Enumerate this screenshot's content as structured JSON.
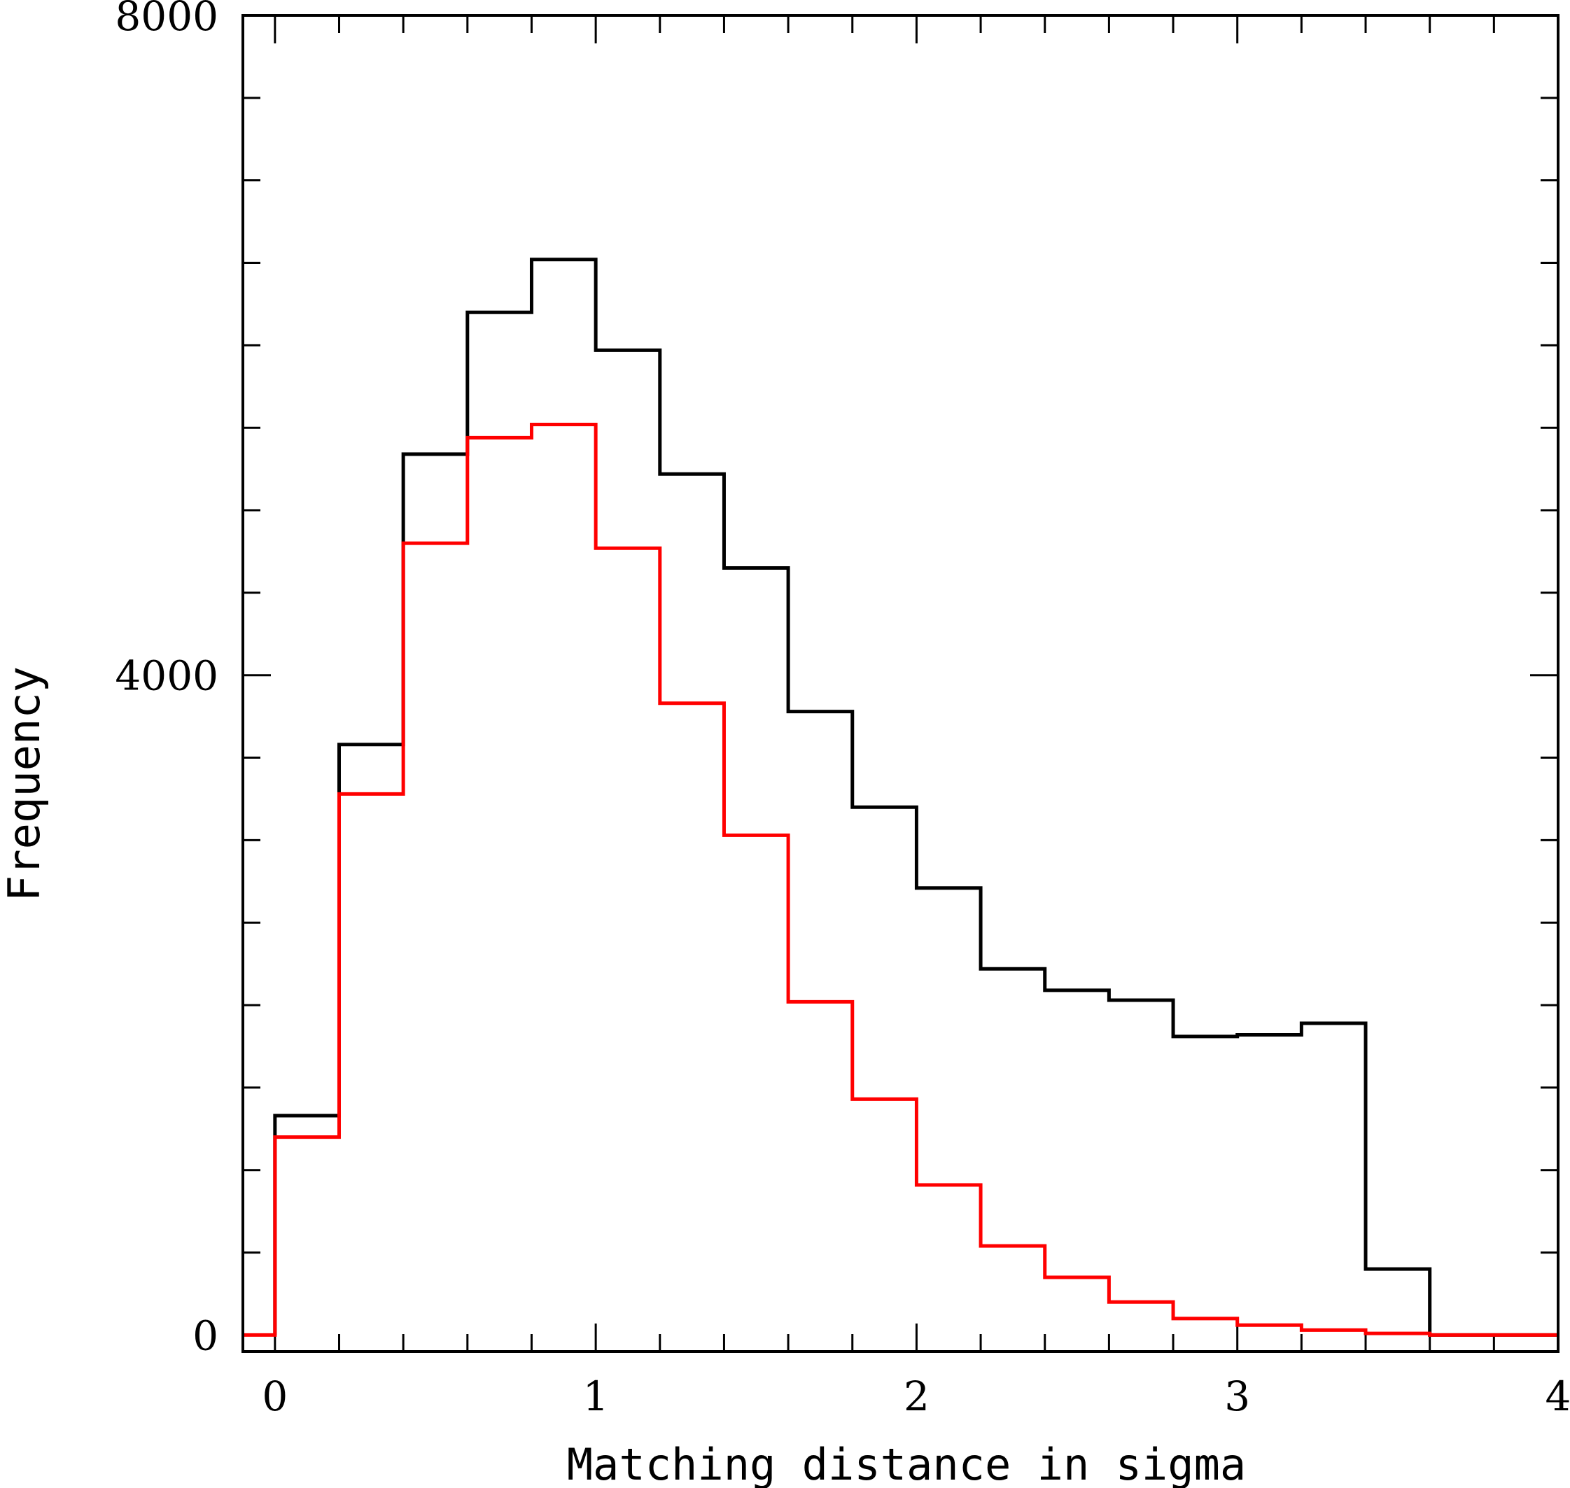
{
  "chart_data": {
    "type": "line",
    "style": "step-histogram",
    "title": "",
    "xlabel": "Matching distance in sigma",
    "ylabel": "Frequency",
    "xlim": [
      -0.1,
      4
    ],
    "ylim": [
      -100,
      8000
    ],
    "x_tick_labels": [
      "0",
      "1",
      "2",
      "3",
      "4"
    ],
    "y_tick_labels": [
      "0",
      "4000",
      "8000"
    ],
    "grid": false,
    "legend": "none",
    "bin_edges": [
      0,
      0.2,
      0.4,
      0.6,
      0.8,
      1.0,
      1.2,
      1.4,
      1.6,
      1.8,
      2.0,
      2.2,
      2.4,
      2.6,
      2.8,
      3.0,
      3.2,
      3.4,
      3.6,
      3.8,
      4.0
    ],
    "series": [
      {
        "color": "#000000",
        "values": [
          1330,
          3580,
          5340,
          6200,
          6520,
          5970,
          5220,
          4650,
          3780,
          3200,
          2710,
          2220,
          2090,
          2030,
          1810,
          1820,
          1890,
          400,
          0,
          0
        ]
      },
      {
        "color": "#ff0000",
        "values": [
          1200,
          3280,
          4800,
          5440,
          5520,
          4770,
          3830,
          3030,
          2020,
          1430,
          910,
          540,
          350,
          200,
          100,
          60,
          30,
          10,
          0,
          0
        ]
      }
    ]
  }
}
